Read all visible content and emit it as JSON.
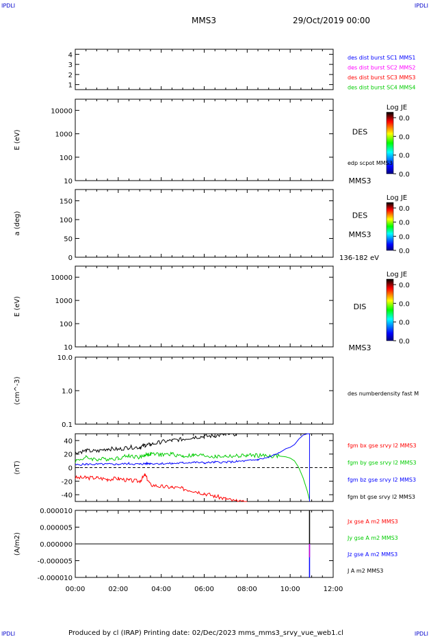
{
  "corner_labels": [
    "IPDLI",
    "IPDLI",
    "IPDLI",
    "IPDLI"
  ],
  "header": {
    "spacecraft": "MMS3",
    "date": "29/Oct/2019 00:00"
  },
  "footer": "Produced by cl (IRAP)   Printing date: 02/Dec/2023   mms_mms3_srvy_vue_web1.cl",
  "colors": {
    "blue": "#0000ff",
    "magenta": "#ff00ff",
    "red": "#ff0000",
    "green": "#00cc00",
    "black": "#000000"
  },
  "chart_data": [
    {
      "type": "line",
      "ylim": [
        0.5,
        4.5
      ],
      "yticks": [
        "1",
        "2",
        "3",
        "4"
      ],
      "legend": [
        {
          "label": "des dist burst SC1 MMS1",
          "color": "#0000ff"
        },
        {
          "label": "des dist burst SC2 MMS2",
          "color": "#ff00ff"
        },
        {
          "label": "des dist burst SC3 MMS3",
          "color": "#ff0000"
        },
        {
          "label": "des dist burst SC4 MMS4",
          "color": "#00cc00"
        }
      ]
    },
    {
      "type": "heatmap",
      "ylabel": "E (eV)",
      "scale": "log",
      "ylim": [
        10,
        30000
      ],
      "yticks": [
        "10",
        "100",
        "1000",
        "10000"
      ],
      "right_label": "DES",
      "right_sub": "MMS3",
      "overlay_label": "edp scpot MMS3",
      "colorbar": {
        "title": "Log JE",
        "ticks": [
          "0.0",
          "0.0",
          "0.0",
          "0.0"
        ]
      }
    },
    {
      "type": "heatmap",
      "ylabel": "a (deg)",
      "ylim": [
        0,
        180
      ],
      "yticks": [
        "0",
        "50",
        "100",
        "150"
      ],
      "right_label": "DES",
      "right_sub": "MMS3",
      "energy_range": "136-182 eV",
      "colorbar": {
        "title": "Log JE",
        "ticks": [
          "0.0",
          "0.0",
          "0.0",
          "0.0"
        ]
      }
    },
    {
      "type": "heatmap",
      "ylabel": "E (eV)",
      "scale": "log",
      "ylim": [
        10,
        30000
      ],
      "yticks": [
        "10",
        "100",
        "1000",
        "10000"
      ],
      "right_label": "DIS",
      "right_sub": "MMS3",
      "colorbar": {
        "title": "Log JE",
        "ticks": [
          "0.0",
          "0.0",
          "0.0",
          "0.0"
        ]
      }
    },
    {
      "type": "line",
      "ylabel": "(cm^-3)",
      "scale": "log",
      "ylim": [
        0.1,
        10
      ],
      "yticks": [
        "0.1",
        "1.0",
        "10.0"
      ],
      "legend": [
        {
          "label": "des numberdensity fast M",
          "color": "#000000"
        }
      ]
    },
    {
      "type": "line",
      "ylabel": "(nT)",
      "ylim": [
        -50,
        50
      ],
      "yticks": [
        "-40",
        "-20",
        "0",
        "20",
        "40"
      ],
      "x": [
        0,
        0.5,
        1,
        1.5,
        2,
        2.5,
        3,
        3.25,
        3.5,
        4,
        4.5,
        5,
        5.5,
        6,
        6.5,
        7,
        7.5,
        8,
        8.5,
        9,
        9.5,
        9.8,
        10,
        10.2,
        10.4,
        10.6,
        10.8,
        10.9
      ],
      "series": [
        {
          "name": "fgm bx gse srvy l2 MMS3",
          "color": "#ff0000",
          "values": [
            -15,
            -15,
            -15,
            -17,
            -16,
            -19,
            -20,
            -11,
            -25,
            -28,
            -29,
            -31,
            -34,
            -38,
            -42,
            -46,
            -50,
            -52,
            null,
            null,
            null,
            null,
            null,
            null,
            null,
            null,
            null,
            null
          ]
        },
        {
          "name": "fgm by gse srvy l2 MMS3",
          "color": "#00cc00",
          "values": [
            10,
            15,
            12,
            13,
            14,
            18,
            15,
            19,
            20,
            19,
            20,
            17,
            18,
            18,
            16,
            17,
            17,
            18,
            18,
            17,
            17,
            16,
            14,
            10,
            0,
            -15,
            -35,
            -48
          ]
        },
        {
          "name": "fgm bz gse srvy l2 MMS3",
          "color": "#0000ff",
          "values": [
            4,
            5,
            5,
            5,
            5,
            6,
            5,
            6,
            6,
            6,
            6,
            7,
            8,
            7,
            8,
            8,
            9,
            10,
            12,
            15,
            22,
            28,
            30,
            34,
            42,
            48,
            50,
            50
          ]
        },
        {
          "name": "fgm bt gse srvy l2 MMS3",
          "color": "#000000",
          "values": [
            22,
            25,
            24,
            28,
            27,
            30,
            30,
            33,
            34,
            38,
            40,
            42,
            45,
            46,
            47,
            49,
            50,
            null,
            null,
            null,
            null,
            null,
            null,
            null,
            null,
            null,
            null,
            null
          ]
        }
      ],
      "zero_line": true
    },
    {
      "type": "line",
      "ylabel": "(A/m2)",
      "ylim": [
        -1e-05,
        1e-05
      ],
      "yticks": [
        "-0.000010",
        "-0.000005",
        "0.000000",
        "0.000005",
        "0.000010"
      ],
      "xlabel_ticks": [
        "00:00",
        "02:00",
        "04:00",
        "06:00",
        "08:00",
        "10:00",
        "12:00"
      ],
      "xlim": [
        0,
        12
      ],
      "spike_time": 10.9,
      "legend": [
        {
          "label": "Jx gse A m2 MMS3",
          "color": "#ff0000"
        },
        {
          "label": "Jy gse A m2 MMS3",
          "color": "#00cc00"
        },
        {
          "label": "Jz gse A m2 MMS3",
          "color": "#0000ff"
        },
        {
          "label": "J A m2 MMS3",
          "color": "#000000"
        }
      ]
    }
  ]
}
